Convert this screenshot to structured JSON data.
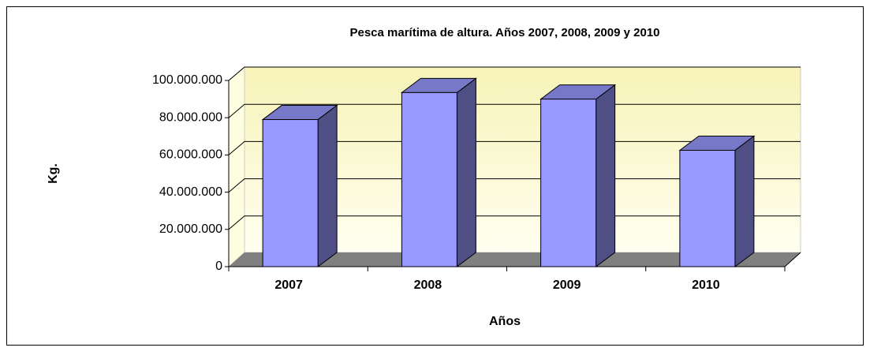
{
  "chart_data": {
    "type": "bar",
    "title": "Pesca marítima de altura. Años 2007, 2008, 2009 y 2010",
    "x_label": "Años",
    "y_label": "Kg.",
    "categories": [
      "2007",
      "2008",
      "2009",
      "2010"
    ],
    "values": [
      79000000,
      93500000,
      90000000,
      62500000
    ],
    "color": "#9999ff",
    "ylim": [
      0,
      100000000
    ],
    "yticks": [
      0,
      {
        "value": 20000000,
        "label": "20.000.000"
      },
      {
        "value": 40000000,
        "label": "40.000.000"
      },
      {
        "value": 60000000,
        "label": "60.000.000"
      },
      {
        "value": 80000000,
        "label": "80.000.000"
      },
      {
        "value": 100000000,
        "label": "100.000.000"
      }
    ],
    "grid": true
  }
}
